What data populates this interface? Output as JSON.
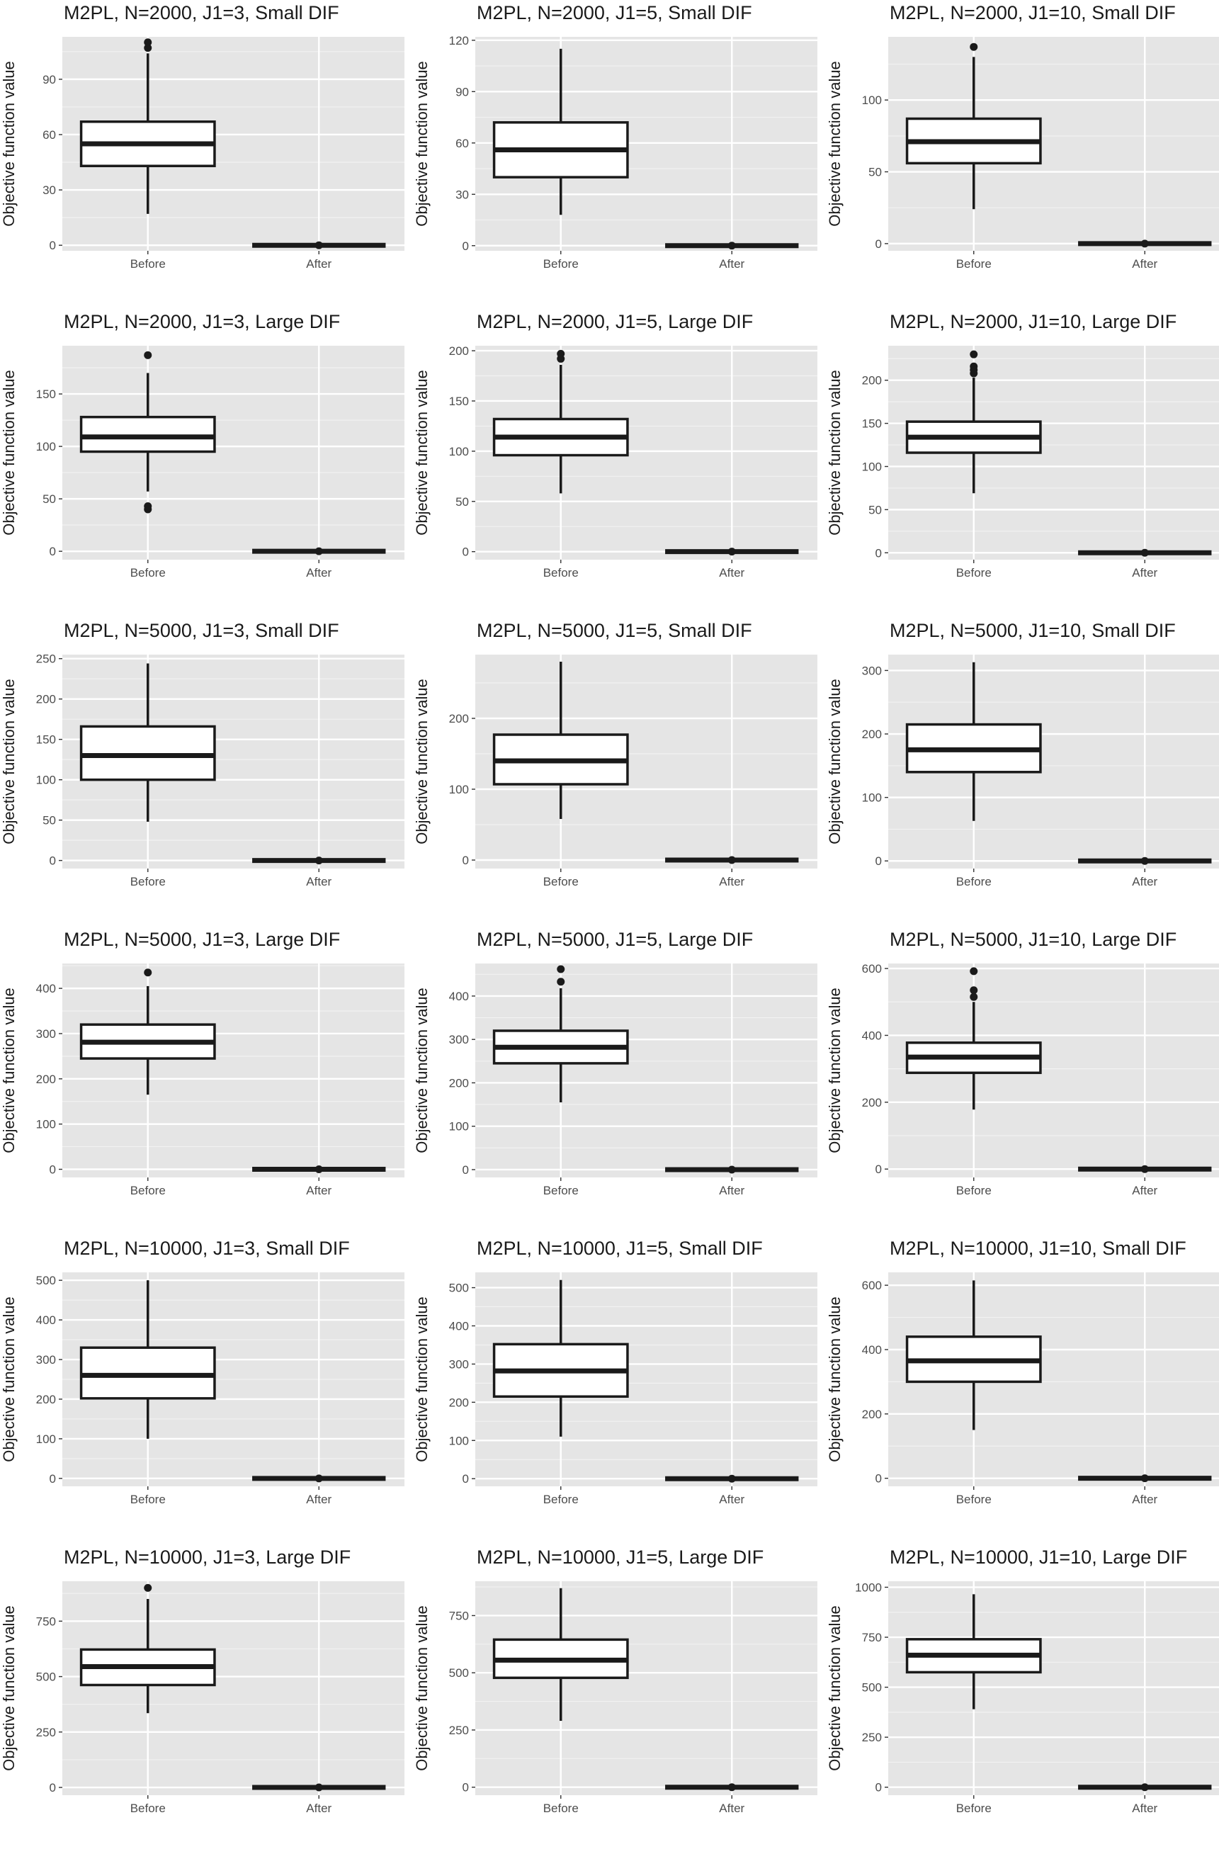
{
  "colors": {
    "panel_bg": "#e5e5e5",
    "grid_major": "#ffffff",
    "box_stroke": "#1a1a1a",
    "box_fill": "#ffffff",
    "tick_text": "#4d4d4d"
  },
  "chart_data": [
    {
      "type": "boxplot",
      "title": "M2PL, N=2000, J1=3, Small DIF",
      "xlabel": "",
      "ylabel": "Objective function value",
      "categories": [
        "Before",
        "After"
      ],
      "yticks": [
        0,
        30,
        60,
        90
      ],
      "ylim": [
        -3,
        113
      ],
      "boxes": [
        {
          "category": "Before",
          "min": 17,
          "q1": 43,
          "median": 55,
          "q3": 67,
          "max": 104,
          "outliers": [
            107,
            110
          ]
        },
        {
          "category": "After",
          "min": 0,
          "q1": 0,
          "median": 0,
          "q3": 0,
          "max": 0,
          "outliers": [
            0
          ]
        }
      ]
    },
    {
      "type": "boxplot",
      "title": "M2PL, N=2000, J1=5, Small DIF",
      "xlabel": "",
      "ylabel": "Objective function value",
      "categories": [
        "Before",
        "After"
      ],
      "yticks": [
        0,
        30,
        60,
        90,
        120
      ],
      "ylim": [
        -3,
        122
      ],
      "boxes": [
        {
          "category": "Before",
          "min": 18,
          "q1": 40,
          "median": 56,
          "q3": 72,
          "max": 115,
          "outliers": []
        },
        {
          "category": "After",
          "min": 0,
          "q1": 0,
          "median": 0,
          "q3": 0,
          "max": 0,
          "outliers": [
            0
          ]
        }
      ]
    },
    {
      "type": "boxplot",
      "title": "M2PL, N=2000, J1=10, Small DIF",
      "xlabel": "",
      "ylabel": "Objective function value",
      "categories": [
        "Before",
        "After"
      ],
      "yticks": [
        0,
        50,
        100
      ],
      "ylim": [
        -5,
        144
      ],
      "boxes": [
        {
          "category": "Before",
          "min": 24,
          "q1": 56,
          "median": 71,
          "q3": 87,
          "max": 130,
          "outliers": [
            137
          ]
        },
        {
          "category": "After",
          "min": 0,
          "q1": 0,
          "median": 0,
          "q3": 0,
          "max": 0,
          "outliers": [
            0
          ]
        }
      ]
    },
    {
      "type": "boxplot",
      "title": "M2PL, N=2000, J1=3, Large DIF",
      "xlabel": "",
      "ylabel": "Objective function value",
      "categories": [
        "Before",
        "After"
      ],
      "yticks": [
        0,
        50,
        100,
        150
      ],
      "ylim": [
        -8,
        196
      ],
      "boxes": [
        {
          "category": "Before",
          "min": 57,
          "q1": 95,
          "median": 109,
          "q3": 128,
          "max": 170,
          "outliers": [
            40,
            43,
            187
          ]
        },
        {
          "category": "After",
          "min": 0,
          "q1": 0,
          "median": 0,
          "q3": 0,
          "max": 0,
          "outliers": [
            0
          ]
        }
      ]
    },
    {
      "type": "boxplot",
      "title": "M2PL, N=2000, J1=5, Large DIF",
      "xlabel": "",
      "ylabel": "Objective function value",
      "categories": [
        "Before",
        "After"
      ],
      "yticks": [
        0,
        50,
        100,
        150,
        200
      ],
      "ylim": [
        -8,
        205
      ],
      "boxes": [
        {
          "category": "Before",
          "min": 58,
          "q1": 96,
          "median": 114,
          "q3": 132,
          "max": 186,
          "outliers": [
            192,
            197
          ]
        },
        {
          "category": "After",
          "min": 0,
          "q1": 0,
          "median": 0,
          "q3": 0,
          "max": 0,
          "outliers": [
            0
          ]
        }
      ]
    },
    {
      "type": "boxplot",
      "title": "M2PL, N=2000, J1=10, Large DIF",
      "xlabel": "",
      "ylabel": "Objective function value",
      "categories": [
        "Before",
        "After"
      ],
      "yticks": [
        0,
        50,
        100,
        150,
        200
      ],
      "ylim": [
        -8,
        240
      ],
      "boxes": [
        {
          "category": "Before",
          "min": 69,
          "q1": 116,
          "median": 134,
          "q3": 152,
          "max": 203,
          "outliers": [
            208,
            212,
            216,
            230
          ]
        },
        {
          "category": "After",
          "min": 0,
          "q1": 0,
          "median": 0,
          "q3": 0,
          "max": 0,
          "outliers": [
            0
          ]
        }
      ]
    },
    {
      "type": "boxplot",
      "title": "M2PL, N=5000, J1=3, Small DIF",
      "xlabel": "",
      "ylabel": "Objective function value",
      "categories": [
        "Before",
        "After"
      ],
      "yticks": [
        0,
        50,
        100,
        150,
        200,
        250
      ],
      "ylim": [
        -10,
        255
      ],
      "boxes": [
        {
          "category": "Before",
          "min": 48,
          "q1": 100,
          "median": 130,
          "q3": 166,
          "max": 244,
          "outliers": []
        },
        {
          "category": "After",
          "min": 0,
          "q1": 0,
          "median": 0,
          "q3": 0,
          "max": 0,
          "outliers": [
            0
          ]
        }
      ]
    },
    {
      "type": "boxplot",
      "title": "M2PL, N=5000, J1=5, Small DIF",
      "xlabel": "",
      "ylabel": "Objective function value",
      "categories": [
        "Before",
        "After"
      ],
      "yticks": [
        0,
        100,
        200
      ],
      "ylim": [
        -12,
        290
      ],
      "boxes": [
        {
          "category": "Before",
          "min": 58,
          "q1": 107,
          "median": 140,
          "q3": 177,
          "max": 280,
          "outliers": []
        },
        {
          "category": "After",
          "min": 0,
          "q1": 0,
          "median": 0,
          "q3": 0,
          "max": 0,
          "outliers": [
            0
          ]
        }
      ]
    },
    {
      "type": "boxplot",
      "title": "M2PL, N=5000, J1=10, Small DIF",
      "xlabel": "",
      "ylabel": "Objective function value",
      "categories": [
        "Before",
        "After"
      ],
      "yticks": [
        0,
        100,
        200,
        300
      ],
      "ylim": [
        -12,
        325
      ],
      "boxes": [
        {
          "category": "Before",
          "min": 63,
          "q1": 140,
          "median": 175,
          "q3": 215,
          "max": 313,
          "outliers": []
        },
        {
          "category": "After",
          "min": 0,
          "q1": 0,
          "median": 0,
          "q3": 0,
          "max": 0,
          "outliers": [
            0
          ]
        }
      ]
    },
    {
      "type": "boxplot",
      "title": "M2PL, N=5000, J1=3, Large DIF",
      "xlabel": "",
      "ylabel": "Objective function value",
      "categories": [
        "Before",
        "After"
      ],
      "yticks": [
        0,
        100,
        200,
        300,
        400
      ],
      "ylim": [
        -18,
        455
      ],
      "boxes": [
        {
          "category": "Before",
          "min": 165,
          "q1": 245,
          "median": 281,
          "q3": 320,
          "max": 405,
          "outliers": [
            435
          ]
        },
        {
          "category": "After",
          "min": 0,
          "q1": 0,
          "median": 0,
          "q3": 0,
          "max": 0,
          "outliers": [
            0
          ]
        }
      ]
    },
    {
      "type": "boxplot",
      "title": "M2PL, N=5000, J1=5, Large DIF",
      "xlabel": "",
      "ylabel": "Objective function value",
      "categories": [
        "Before",
        "After"
      ],
      "yticks": [
        0,
        100,
        200,
        300,
        400
      ],
      "ylim": [
        -18,
        475
      ],
      "boxes": [
        {
          "category": "Before",
          "min": 155,
          "q1": 245,
          "median": 282,
          "q3": 320,
          "max": 418,
          "outliers": [
            433,
            462
          ]
        },
        {
          "category": "After",
          "min": 0,
          "q1": 0,
          "median": 0,
          "q3": 0,
          "max": 0,
          "outliers": [
            0
          ]
        }
      ]
    },
    {
      "type": "boxplot",
      "title": "M2PL, N=5000, J1=10, Large DIF",
      "xlabel": "",
      "ylabel": "Objective function value",
      "categories": [
        "Before",
        "After"
      ],
      "yticks": [
        0,
        200,
        400,
        600
      ],
      "ylim": [
        -25,
        615
      ],
      "boxes": [
        {
          "category": "Before",
          "min": 178,
          "q1": 288,
          "median": 335,
          "q3": 378,
          "max": 500,
          "outliers": [
            515,
            535,
            592
          ]
        },
        {
          "category": "After",
          "min": 0,
          "q1": 0,
          "median": 0,
          "q3": 0,
          "max": 0,
          "outliers": [
            0
          ]
        }
      ]
    },
    {
      "type": "boxplot",
      "title": "M2PL, N=10000, J1=3, Small DIF",
      "xlabel": "",
      "ylabel": "Objective function value",
      "categories": [
        "Before",
        "After"
      ],
      "yticks": [
        0,
        100,
        200,
        300,
        400,
        500
      ],
      "ylim": [
        -20,
        520
      ],
      "boxes": [
        {
          "category": "Before",
          "min": 100,
          "q1": 202,
          "median": 260,
          "q3": 330,
          "max": 500,
          "outliers": []
        },
        {
          "category": "After",
          "min": 0,
          "q1": 0,
          "median": 0,
          "q3": 0,
          "max": 0,
          "outliers": [
            0
          ]
        }
      ]
    },
    {
      "type": "boxplot",
      "title": "M2PL, N=10000, J1=5, Small DIF",
      "xlabel": "",
      "ylabel": "Objective function value",
      "categories": [
        "Before",
        "After"
      ],
      "yticks": [
        0,
        100,
        200,
        300,
        400,
        500
      ],
      "ylim": [
        -20,
        540
      ],
      "boxes": [
        {
          "category": "Before",
          "min": 110,
          "q1": 215,
          "median": 282,
          "q3": 352,
          "max": 520,
          "outliers": []
        },
        {
          "category": "After",
          "min": 0,
          "q1": 0,
          "median": 0,
          "q3": 0,
          "max": 0,
          "outliers": [
            0
          ]
        }
      ]
    },
    {
      "type": "boxplot",
      "title": "M2PL, N=10000, J1=10, Small DIF",
      "xlabel": "",
      "ylabel": "Objective function value",
      "categories": [
        "Before",
        "After"
      ],
      "yticks": [
        0,
        200,
        400,
        600
      ],
      "ylim": [
        -25,
        640
      ],
      "boxes": [
        {
          "category": "Before",
          "min": 150,
          "q1": 300,
          "median": 365,
          "q3": 440,
          "max": 615,
          "outliers": []
        },
        {
          "category": "After",
          "min": 0,
          "q1": 0,
          "median": 0,
          "q3": 0,
          "max": 0,
          "outliers": [
            0
          ]
        }
      ]
    },
    {
      "type": "boxplot",
      "title": "M2PL, N=10000, J1=3, Large DIF",
      "xlabel": "",
      "ylabel": "Objective function value",
      "categories": [
        "Before",
        "After"
      ],
      "yticks": [
        0,
        250,
        500,
        750
      ],
      "ylim": [
        -35,
        930
      ],
      "boxes": [
        {
          "category": "Before",
          "min": 335,
          "q1": 462,
          "median": 545,
          "q3": 622,
          "max": 850,
          "outliers": [
            900
          ]
        },
        {
          "category": "After",
          "min": 0,
          "q1": 0,
          "median": 0,
          "q3": 0,
          "max": 0,
          "outliers": [
            0
          ]
        }
      ]
    },
    {
      "type": "boxplot",
      "title": "M2PL, N=10000, J1=5, Large DIF",
      "xlabel": "",
      "ylabel": "Objective function value",
      "categories": [
        "Before",
        "After"
      ],
      "yticks": [
        0,
        250,
        500,
        750
      ],
      "ylim": [
        -35,
        900
      ],
      "boxes": [
        {
          "category": "Before",
          "min": 290,
          "q1": 478,
          "median": 555,
          "q3": 645,
          "max": 870,
          "outliers": []
        },
        {
          "category": "After",
          "min": 0,
          "q1": 0,
          "median": 0,
          "q3": 0,
          "max": 0,
          "outliers": [
            0
          ]
        }
      ]
    },
    {
      "type": "boxplot",
      "title": "M2PL, N=10000, J1=10, Large DIF",
      "xlabel": "",
      "ylabel": "Objective function value",
      "categories": [
        "Before",
        "After"
      ],
      "yticks": [
        0,
        250,
        500,
        750,
        1000
      ],
      "ylim": [
        -40,
        1030
      ],
      "boxes": [
        {
          "category": "Before",
          "min": 390,
          "q1": 575,
          "median": 660,
          "q3": 740,
          "max": 965,
          "outliers": []
        },
        {
          "category": "After",
          "min": 0,
          "q1": 0,
          "median": 0,
          "q3": 0,
          "max": 0,
          "outliers": [
            0
          ]
        }
      ]
    }
  ]
}
